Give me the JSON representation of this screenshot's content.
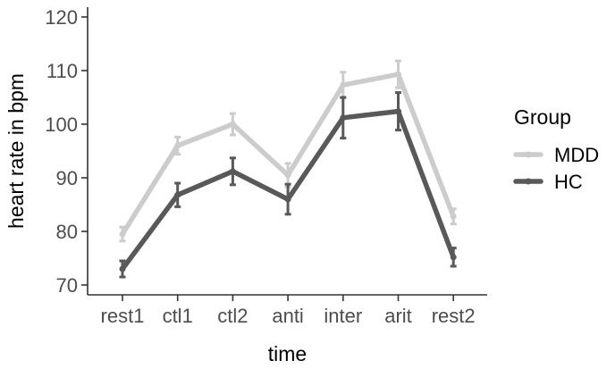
{
  "chart_data": {
    "type": "line",
    "xlabel": "time",
    "ylabel": "heart rate in bpm",
    "categories": [
      "rest1",
      "ctl1",
      "ctl2",
      "anti",
      "inter",
      "arit",
      "rest2"
    ],
    "ylim": [
      68,
      122
    ],
    "yticks": [
      70,
      80,
      90,
      100,
      110,
      120
    ],
    "grid": false,
    "legend": {
      "title": "Group",
      "position": "right"
    },
    "series": [
      {
        "name": "MDD",
        "color": "#cccccc",
        "values": [
          79.5,
          96.0,
          100.0,
          90.5,
          107.3,
          109.3,
          82.8
        ],
        "error": [
          1.3,
          1.6,
          2.0,
          2.2,
          2.4,
          2.5,
          1.4
        ]
      },
      {
        "name": "HC",
        "color": "#595959",
        "values": [
          73.0,
          86.8,
          91.2,
          86.0,
          101.2,
          102.4,
          75.2
        ],
        "error": [
          1.5,
          2.2,
          2.5,
          2.8,
          3.8,
          3.5,
          1.7
        ]
      }
    ]
  }
}
